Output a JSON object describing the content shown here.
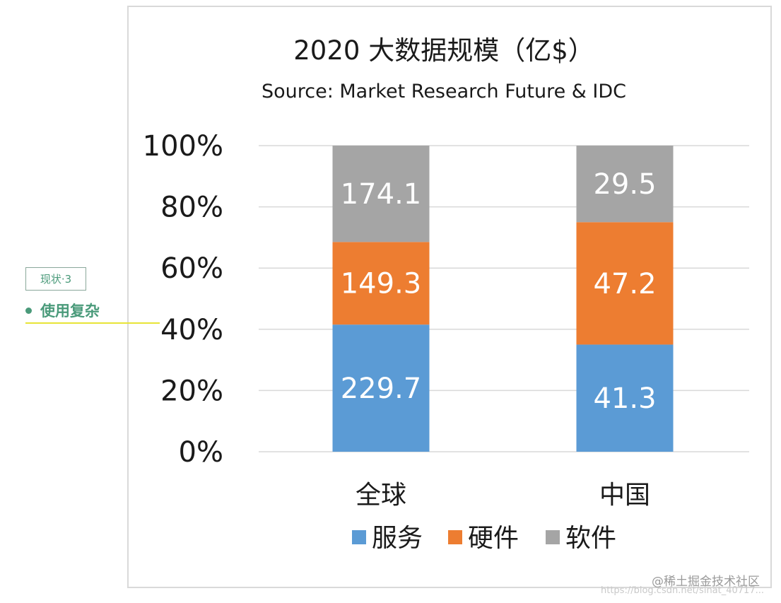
{
  "side_panel": {
    "tag_label": "现状·3",
    "bullet_text": "使用复杂"
  },
  "watermark": {
    "text": "@稀土掘金技术社区",
    "url": "https://blog.csdn.net/sinat_40717..."
  },
  "chart_data": {
    "type": "bar",
    "stacked": "percent",
    "title": "2020 大数据规模（亿$）",
    "subtitle": "Source: Market Research Future  & IDC",
    "categories": [
      "全球",
      "中国"
    ],
    "series": [
      {
        "name": "服务",
        "color": "#5b9bd5",
        "values": [
          229.7,
          41.3
        ]
      },
      {
        "name": "硬件",
        "color": "#ed7d31",
        "values": [
          149.3,
          47.2
        ]
      },
      {
        "name": "软件",
        "color": "#a5a5a5",
        "values": [
          174.1,
          29.5
        ]
      }
    ],
    "y_ticks": [
      "0%",
      "20%",
      "40%",
      "60%",
      "80%",
      "100%"
    ],
    "ylim": [
      0,
      100
    ],
    "grid": true,
    "legend_position": "bottom",
    "xlabel": "",
    "ylabel": ""
  }
}
